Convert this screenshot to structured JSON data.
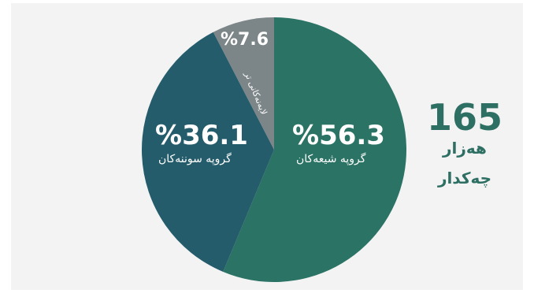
{
  "colors": {
    "background": "#f3f3f3",
    "shia": "#2a7365",
    "sunni": "#245c6c",
    "others": "#7c8587",
    "accent_text": "#2d6f63"
  },
  "chart_data": {
    "type": "pie",
    "title": "",
    "slices": [
      {
        "label": "گروپە شیعەکان",
        "value": 56.3,
        "display": "%56.3"
      },
      {
        "label": "گروپە سوننەکان",
        "value": 36.1,
        "display": "%36.1"
      },
      {
        "label": "لایەنەکانی تر",
        "value": 7.6,
        "display": "%7.6"
      }
    ]
  },
  "summary": {
    "total_number": "165",
    "total_unit_line1": "هەزار",
    "total_unit_line2": "چەکدار"
  }
}
